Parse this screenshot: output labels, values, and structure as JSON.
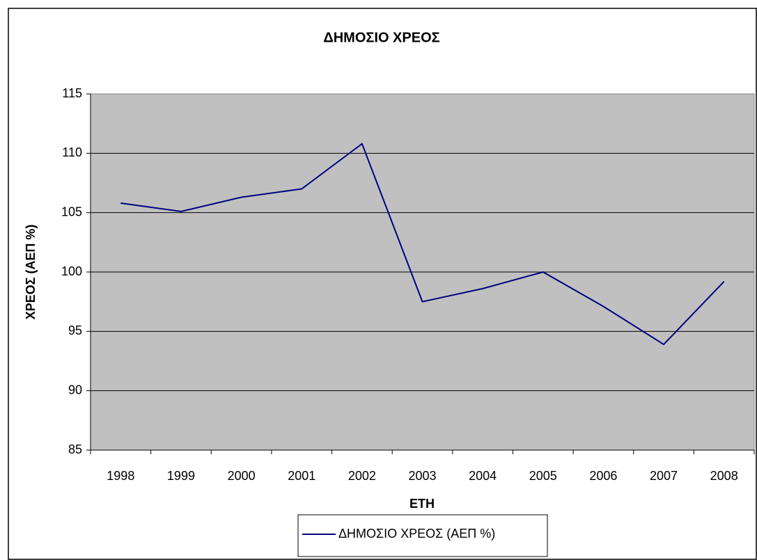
{
  "chart_data": {
    "type": "line",
    "title": "ΔΗΜΟΣΙΟ ΧΡΕΟΣ",
    "x_label": "ΕΤΗ",
    "y_label": "ΧΡΕΟΣ (ΑΕΠ %)",
    "categories": [
      "1998",
      "1999",
      "2000",
      "2001",
      "2002",
      "2003",
      "2004",
      "2005",
      "2006",
      "2007",
      "2008"
    ],
    "series": [
      {
        "name": "ΔΗΜΟΣΙΟ ΧΡΕΟΣ (ΑΕΠ %)",
        "color": "#000080",
        "values": [
          105.8,
          105.1,
          106.3,
          107.0,
          110.8,
          97.5,
          98.6,
          100.0,
          97.1,
          93.9,
          99.2
        ]
      }
    ],
    "ylim": [
      85,
      115
    ],
    "yticks": [
      85,
      90,
      95,
      100,
      105,
      110,
      115
    ],
    "grid": true,
    "legend": "bottom"
  }
}
